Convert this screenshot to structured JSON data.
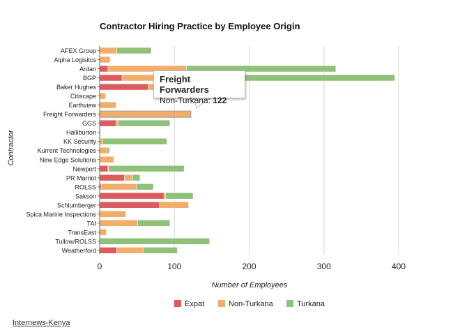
{
  "chart_data": {
    "type": "bar",
    "orientation": "horizontal",
    "stacked": true,
    "title": "Contractor Hiring Practice by Employee Origin",
    "xlabel": "Number of Employees",
    "ylabel": "Contractor",
    "xlim": [
      0,
      400
    ],
    "xticks": [
      0,
      100,
      200,
      300,
      400
    ],
    "grid": true,
    "legend_position": "bottom",
    "categories": [
      "AFEX Group",
      "Alpha Logisitcs",
      "Ardan",
      "BGP",
      "Baker Hughes",
      "Citiscape",
      "Earthview",
      "Freight Forwarders",
      "GGS",
      "Halliburton",
      "KK Security",
      "Kurrent Technologies",
      "New Edge Solutions",
      "Newport",
      "PR Marriot",
      "ROLSS",
      "Sakson",
      "Schlumberger",
      "Spica Marine Inspections",
      "TAI",
      "TransEast",
      "Tullow/ROLSS",
      "Weatherford"
    ],
    "series": [
      {
        "name": "Expat",
        "color": "#dc5b5e",
        "values": [
          0,
          0,
          11,
          30,
          65,
          0,
          0,
          0,
          22,
          1,
          0,
          0,
          0,
          11,
          33,
          2,
          86,
          80,
          0,
          0,
          0,
          0,
          23
        ]
      },
      {
        "name": "Non-Turkana",
        "color": "#f2ad6a",
        "values": [
          23,
          14,
          105,
          45,
          10,
          8,
          22,
          122,
          3,
          0,
          4,
          10,
          19,
          1,
          11,
          47,
          2,
          39,
          35,
          51,
          9,
          0,
          35
        ]
      },
      {
        "name": "Turkana",
        "color": "#8fc17b",
        "values": [
          46,
          0,
          200,
          320,
          0,
          0,
          0,
          0,
          69,
          0,
          86,
          3,
          0,
          101,
          10,
          23,
          37,
          0,
          0,
          43,
          0,
          147,
          46
        ]
      }
    ],
    "tooltip": {
      "category": "Freight Forwarders",
      "series": "Non-Turkana",
      "label": "Non-Turkana:",
      "value": "122"
    }
  },
  "credit_text": "Internews-Kenya"
}
